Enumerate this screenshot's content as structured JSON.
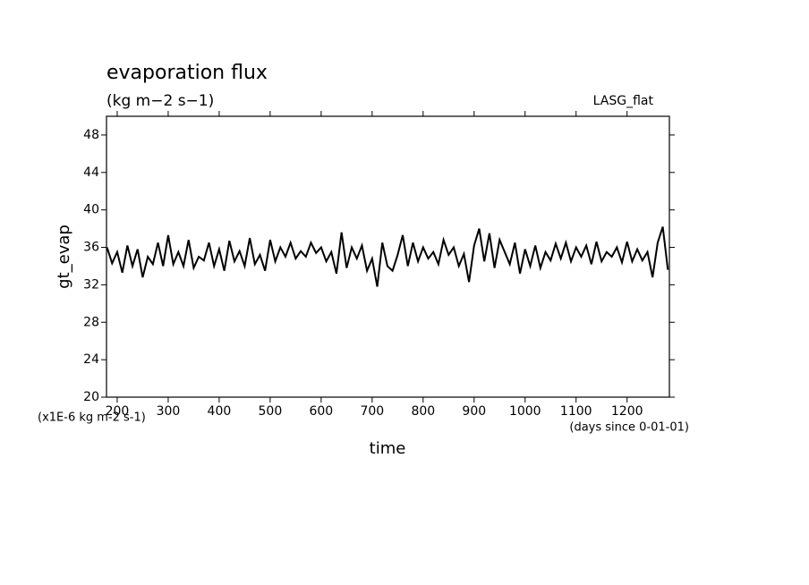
{
  "chart_data": {
    "type": "line",
    "title": "evaporation flux",
    "subtitle": "(kg m−2 s−1)",
    "annotation": "LASG_flat",
    "ylabel": "gt_evap",
    "xlabel": "time",
    "yunit": "(x1E-6 kg m-2 s-1)",
    "xunit": "(days since 0-01-01)",
    "xlim": [
      179,
      1283
    ],
    "ylim": [
      20,
      50
    ],
    "xticks": [
      200,
      300,
      400,
      500,
      600,
      700,
      800,
      900,
      1000,
      1100,
      1200
    ],
    "yticks": [
      20,
      24,
      28,
      32,
      36,
      40,
      44,
      48
    ],
    "x": [
      180,
      190,
      200,
      210,
      220,
      230,
      240,
      250,
      260,
      270,
      280,
      290,
      300,
      310,
      320,
      330,
      340,
      350,
      360,
      370,
      380,
      390,
      400,
      410,
      420,
      430,
      440,
      450,
      460,
      470,
      480,
      490,
      500,
      510,
      520,
      530,
      540,
      550,
      560,
      570,
      580,
      590,
      600,
      610,
      620,
      630,
      640,
      650,
      660,
      670,
      680,
      690,
      700,
      710,
      720,
      730,
      740,
      750,
      760,
      770,
      780,
      790,
      800,
      810,
      820,
      830,
      840,
      850,
      860,
      870,
      880,
      890,
      900,
      910,
      920,
      930,
      940,
      950,
      960,
      970,
      980,
      990,
      1000,
      1010,
      1020,
      1030,
      1040,
      1050,
      1060,
      1070,
      1080,
      1090,
      1100,
      1110,
      1120,
      1130,
      1140,
      1150,
      1160,
      1170,
      1180,
      1190,
      1200,
      1210,
      1220,
      1230,
      1240,
      1250,
      1260,
      1270,
      1280
    ],
    "series": [
      {
        "color": "#000000",
        "values": [
          36.0,
          34.3,
          35.5,
          33.3,
          36.2,
          34.0,
          35.8,
          32.8,
          35.0,
          34.2,
          36.5,
          34.0,
          37.3,
          34.2,
          35.5,
          34.0,
          36.8,
          33.8,
          35.0,
          34.6,
          36.5,
          34.0,
          35.8,
          33.5,
          36.7,
          34.5,
          35.6,
          34.0,
          37.0,
          34.2,
          35.2,
          33.5,
          36.8,
          34.5,
          36.0,
          35.0,
          36.5,
          34.8,
          35.6,
          35.0,
          36.5,
          35.4,
          36.0,
          34.5,
          35.5,
          33.2,
          37.6,
          33.8,
          36.0,
          34.8,
          36.2,
          33.5,
          34.8,
          31.8,
          36.5,
          34.0,
          33.5,
          35.2,
          37.3,
          34.0,
          36.5,
          34.5,
          36.0,
          34.8,
          35.5,
          34.2,
          36.8,
          35.2,
          36.0,
          34.0,
          35.3,
          32.3,
          36.2,
          38.0,
          34.5,
          37.5,
          33.8,
          36.8,
          35.5,
          34.2,
          36.5,
          33.2,
          35.8,
          34.0,
          36.2,
          33.8,
          35.5,
          34.6,
          36.4,
          34.8,
          36.5,
          34.5,
          36.0,
          35.0,
          36.2,
          34.2,
          36.6,
          34.5,
          35.5,
          35.0,
          36.0,
          34.4,
          36.6,
          34.5,
          35.8,
          34.6,
          35.5,
          32.8,
          36.5,
          38.2,
          33.6
        ]
      }
    ]
  }
}
